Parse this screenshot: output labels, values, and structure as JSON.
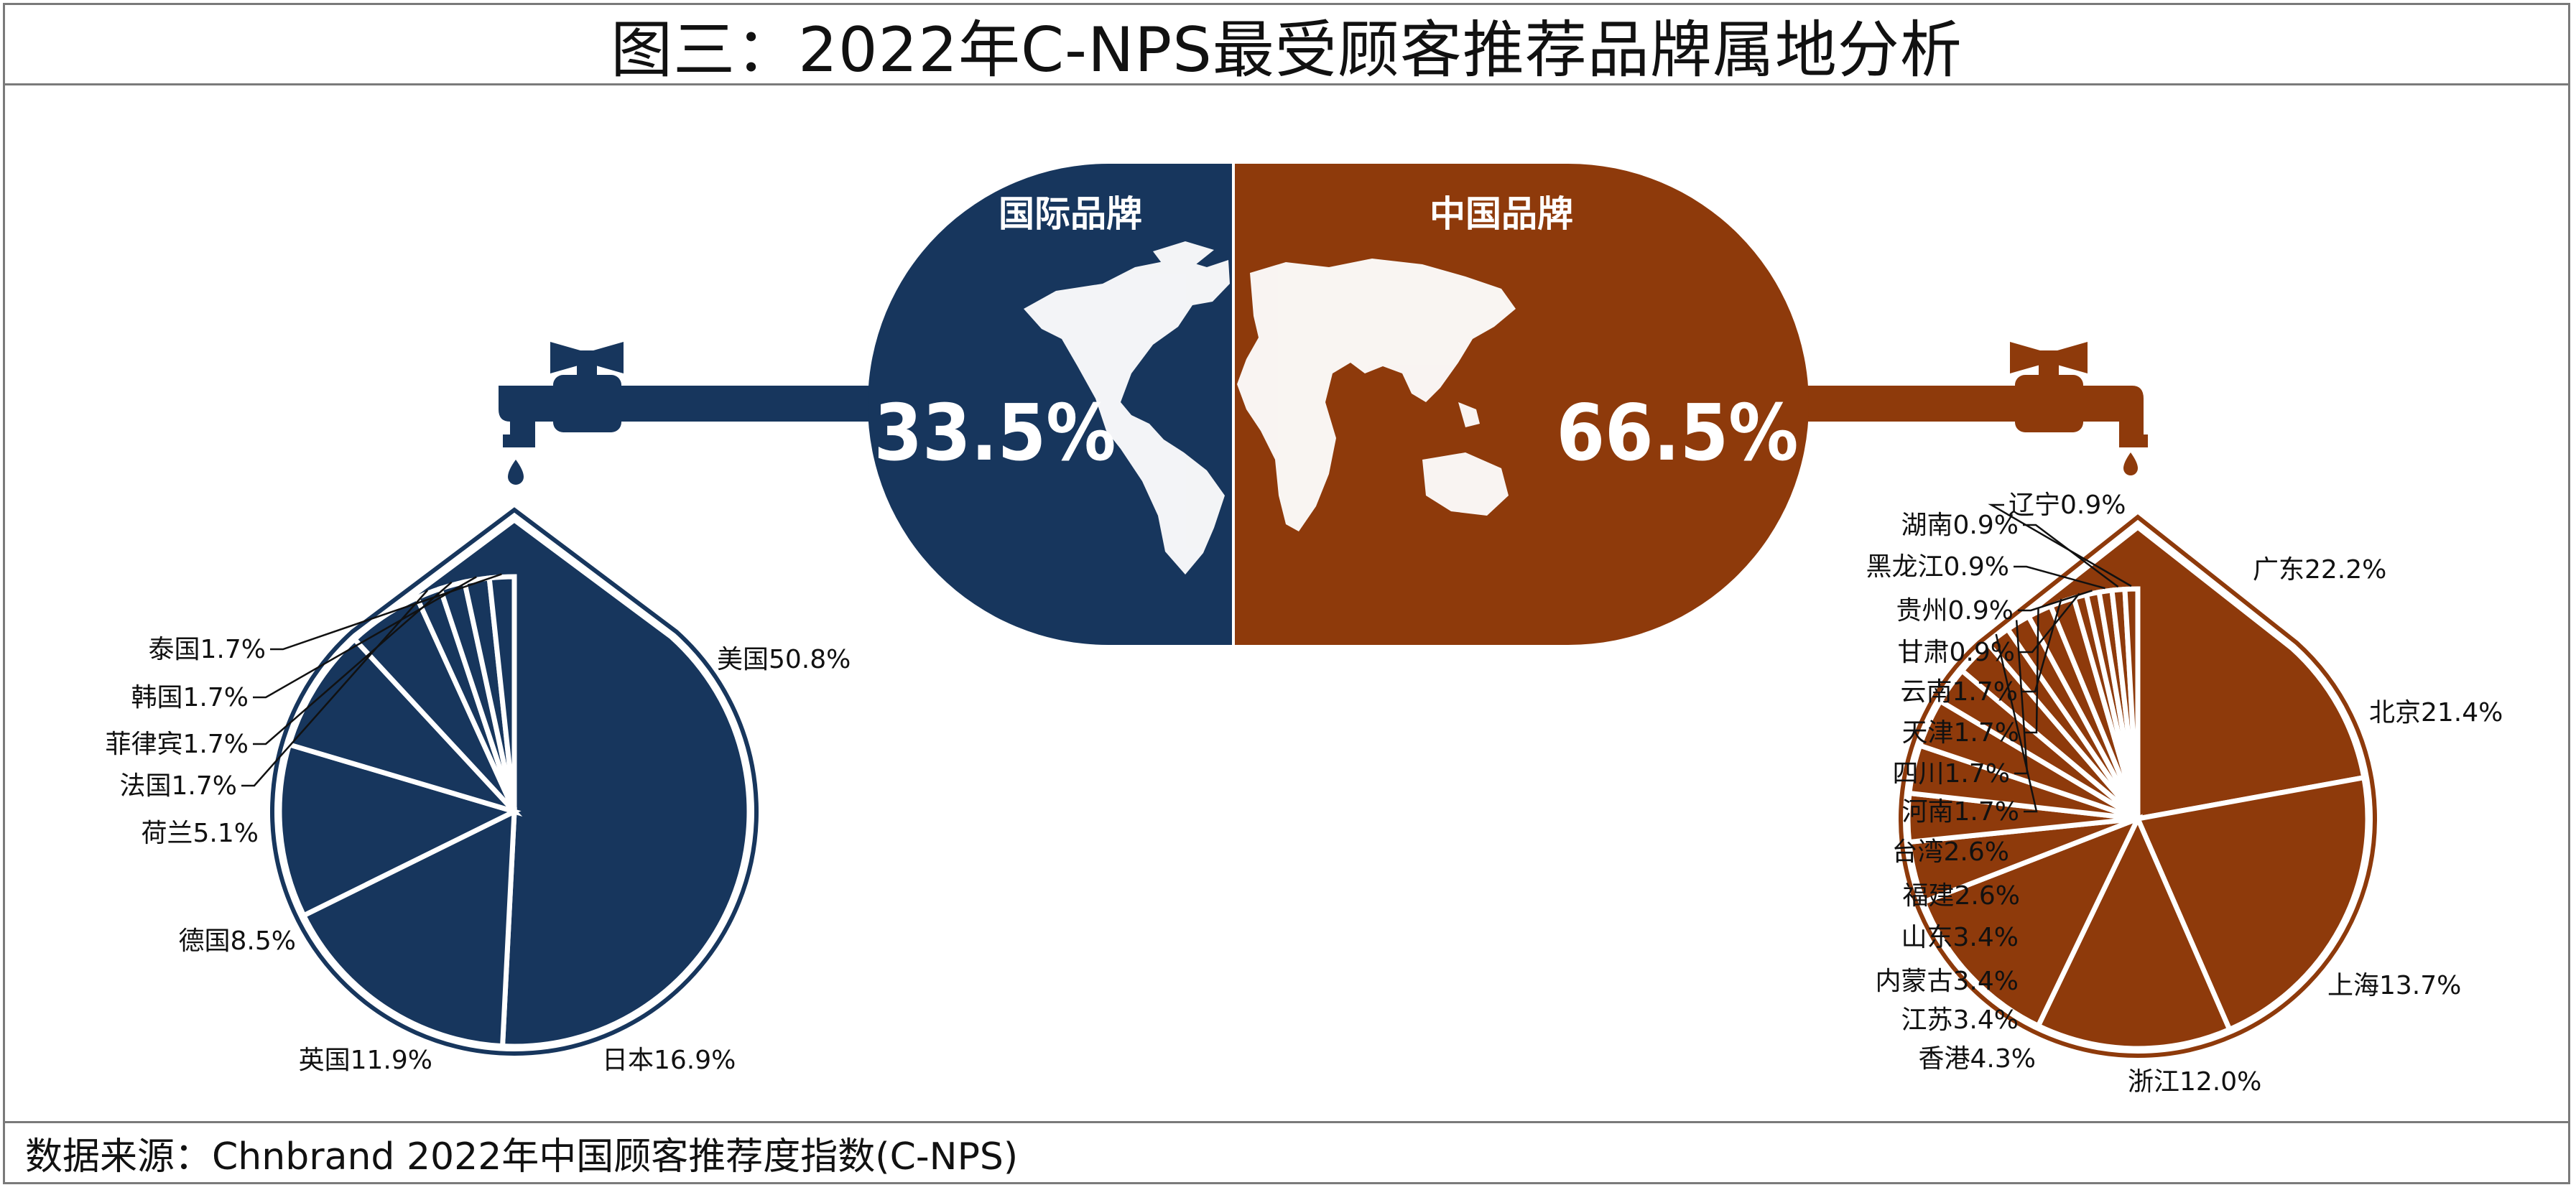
{
  "title": "图三：2022年C-NPS最受顾客推荐品牌属地分析",
  "source": "数据来源：Chnbrand 2022年中国顾客推荐度指数(C-NPS)",
  "colors": {
    "international": "#17365d",
    "china": "#8e3a0b"
  },
  "center": {
    "left": {
      "heading": "国际品牌",
      "value": "33.5%",
      "icon": "world-map-icon"
    },
    "right": {
      "heading": "中国品牌",
      "value": "66.5%",
      "icon": "world-map-icon"
    }
  },
  "chart_data": [
    {
      "type": "pie",
      "title": "国际品牌",
      "categories": [
        "美国",
        "日本",
        "英国",
        "德国",
        "荷兰",
        "法国",
        "菲律宾",
        "韩国",
        "泰国"
      ],
      "values": [
        50.8,
        16.9,
        11.9,
        8.5,
        5.1,
        1.7,
        1.7,
        1.7,
        1.7
      ],
      "labels": [
        "美国50.8%",
        "日本16.9%",
        "英国11.9%",
        "德国8.5%",
        "荷兰5.1%",
        "法国1.7%",
        "菲律宾1.7%",
        "韩国1.7%",
        "泰国1.7%"
      ]
    },
    {
      "type": "pie",
      "title": "中国品牌",
      "categories": [
        "广东",
        "北京",
        "上海",
        "浙江",
        "香港",
        "江苏",
        "内蒙古",
        "山东",
        "福建",
        "台湾",
        "河南",
        "四川",
        "天津",
        "云南",
        "甘肃",
        "贵州",
        "黑龙江",
        "湖南",
        "辽宁"
      ],
      "values": [
        22.2,
        21.4,
        13.7,
        12.0,
        4.3,
        3.4,
        3.4,
        3.4,
        2.6,
        2.6,
        1.7,
        1.7,
        1.7,
        1.7,
        0.9,
        0.9,
        0.9,
        0.9,
        0.9
      ],
      "labels": [
        "广东22.2%",
        "北京21.4%",
        "上海13.7%",
        "浙江12.0%",
        "香港4.3%",
        "江苏3.4%",
        "内蒙古3.4%",
        "山东3.4%",
        "福建2.6%",
        "台湾2.6%",
        "河南1.7%",
        "四川1.7%",
        "天津1.7%",
        "云南1.7%",
        "甘肃0.9%",
        "贵州0.9%",
        "黑龙江0.9%",
        "湖南0.9%",
        "辽宁0.9%"
      ]
    }
  ]
}
